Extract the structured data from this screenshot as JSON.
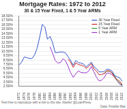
{
  "chart_data": {
    "type": "line",
    "title": "Mortgage Rates: 1972 to 2012",
    "subtitle": "30 & 15 Year Fixed, 1 & 5 Year ARMs",
    "footer": "Feel free to reproduce with a link to this site, thanks! @LoanPress",
    "source": "Data: Freddie Mac",
    "categories": [
      "1972",
      null,
      "1974",
      null,
      "1976",
      null,
      "1978",
      null,
      "1980",
      null,
      "1982",
      null,
      "1984",
      null,
      "1986",
      null,
      "1988",
      null,
      "1990",
      null,
      "1992",
      null,
      "1994",
      null,
      "1996",
      null,
      "1998",
      null,
      "2000",
      null,
      "2002",
      null,
      "2004",
      null,
      "2006",
      null,
      "2008",
      null,
      "2010",
      null,
      "2012"
    ],
    "series": [
      {
        "name": "30 Year Fixed",
        "color": "#3355cc",
        "values": [
          7.38,
          8.04,
          9.19,
          9.05,
          8.87,
          8.85,
          9.64,
          11.2,
          13.74,
          16.63,
          16.04,
          13.24,
          13.88,
          12.43,
          10.19,
          10.21,
          10.34,
          10.32,
          10.13,
          9.25,
          8.39,
          7.31,
          8.38,
          7.93,
          7.81,
          7.6,
          6.94,
          7.44,
          8.05,
          6.97,
          6.54,
          5.83,
          5.84,
          5.87,
          6.41,
          6.34,
          6.03,
          5.04,
          4.69,
          4.45,
          3.66
        ]
      },
      {
        "name": "15 Year Fixed",
        "color": "#cc2222",
        "values": [
          null,
          null,
          null,
          null,
          null,
          null,
          null,
          null,
          null,
          null,
          null,
          null,
          null,
          null,
          null,
          null,
          null,
          null,
          null,
          8.69,
          7.96,
          6.83,
          7.86,
          7.48,
          7.32,
          7.13,
          6.59,
          7.06,
          7.72,
          6.5,
          5.98,
          5.17,
          5.21,
          5.42,
          6.07,
          6.03,
          5.62,
          4.57,
          4.1,
          3.68,
          2.93
        ]
      },
      {
        "name": "5 Year ARM",
        "color": "#339933",
        "values": [
          null,
          null,
          null,
          null,
          null,
          null,
          null,
          null,
          null,
          null,
          null,
          null,
          null,
          null,
          null,
          null,
          null,
          null,
          null,
          null,
          null,
          null,
          null,
          null,
          null,
          null,
          null,
          null,
          null,
          null,
          null,
          null,
          null,
          5.33,
          5.98,
          5.97,
          5.67,
          4.99,
          3.82,
          3.3,
          2.8
        ]
      },
      {
        "name": "1 Year ARM",
        "color": "#9933cc",
        "values": [
          null,
          null,
          null,
          null,
          null,
          null,
          null,
          null,
          null,
          null,
          null,
          null,
          11.51,
          10.05,
          8.43,
          7.83,
          7.9,
          8.8,
          8.36,
          7.09,
          5.62,
          4.58,
          5.36,
          6.06,
          5.67,
          5.61,
          5.58,
          5.99,
          7.04,
          5.82,
          4.62,
          3.76,
          3.9,
          4.49,
          5.54,
          5.56,
          5.17,
          4.7,
          3.78,
          3.02,
          2.7
        ]
      }
    ],
    "ylim": [
      2.5,
      18.5
    ],
    "yticks": [
      {
        "value": 2.5,
        "label": "2.50%"
      },
      {
        "value": 3.5,
        "label": "3.50%"
      },
      {
        "value": 4.5,
        "label": "4.50%"
      },
      {
        "value": 5.5,
        "label": "5.50%"
      },
      {
        "value": 6.5,
        "label": "6.50%"
      },
      {
        "value": 7.5,
        "label": "7.50%"
      },
      {
        "value": 8.5,
        "label": "8.50%"
      },
      {
        "value": 9.5,
        "label": "9.50%"
      },
      {
        "value": 10.5,
        "label": "10.50%"
      },
      {
        "value": 11.5,
        "label": "11.50%"
      },
      {
        "value": 12.5,
        "label": "12.50%"
      },
      {
        "value": 13.5,
        "label": "13.50%"
      },
      {
        "value": 14.5,
        "label": "14.50%"
      },
      {
        "value": 15.5,
        "label": "15.50%"
      },
      {
        "value": 16.5,
        "label": "16.50%"
      },
      {
        "value": 17.5,
        "label": "17.50%"
      },
      {
        "value": 18.5,
        "label": "18.50%"
      }
    ],
    "grid": true,
    "legend": "top right"
  }
}
